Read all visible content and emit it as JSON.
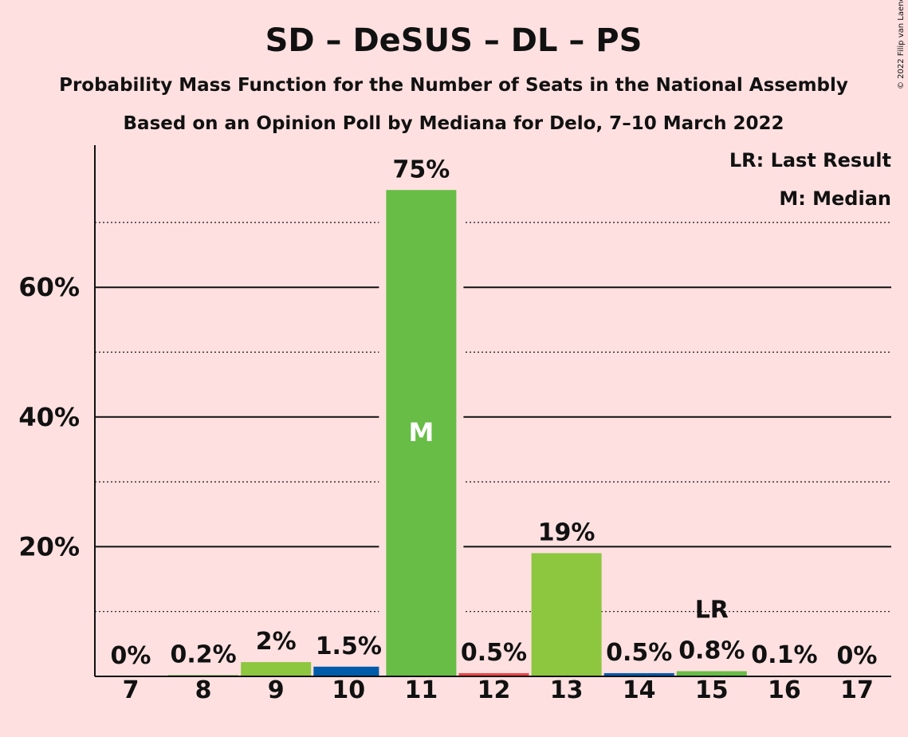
{
  "copyright": "© 2022 Filip van Laenen",
  "chart_data": {
    "type": "bar",
    "title": "SD – DeSUS – DL – PS",
    "subtitle1": "Probability Mass Function for the Number of Seats in the National Assembly",
    "subtitle2": "Based on an Opinion Poll by Mediana for Delo, 7–10 March 2022",
    "categories": [
      "7",
      "8",
      "9",
      "10",
      "11",
      "12",
      "13",
      "14",
      "15",
      "16",
      "17"
    ],
    "values": [
      0,
      0.2,
      2.2,
      1.5,
      75,
      0.5,
      19,
      0.5,
      0.8,
      0.1,
      0
    ],
    "value_labels": [
      "0%",
      "0.2%",
      "2%",
      "1.5%",
      "75%",
      "0.5%",
      "19%",
      "0.5%",
      "0.8%",
      "0.1%",
      "0%"
    ],
    "bar_colors": [
      "#67BD45",
      "#67BD45",
      "#8DC63F",
      "#005BAA",
      "#67BD45",
      "#E8474A",
      "#8DC63F",
      "#005BAA",
      "#67BD45",
      "#67BD45",
      "#67BD45"
    ],
    "ylim": [
      0,
      82
    ],
    "y_ticks": [
      20,
      40,
      60
    ],
    "y_tick_labels": [
      "20%",
      "40%",
      "60%"
    ],
    "dotted_gridlines": [
      10,
      30,
      50,
      70
    ],
    "median_index": 4,
    "median_marker": "M",
    "last_result_index": 8,
    "last_result_marker": "LR",
    "legend": [
      "LR: Last Result",
      "M: Median"
    ],
    "legend_position": "top-right"
  }
}
